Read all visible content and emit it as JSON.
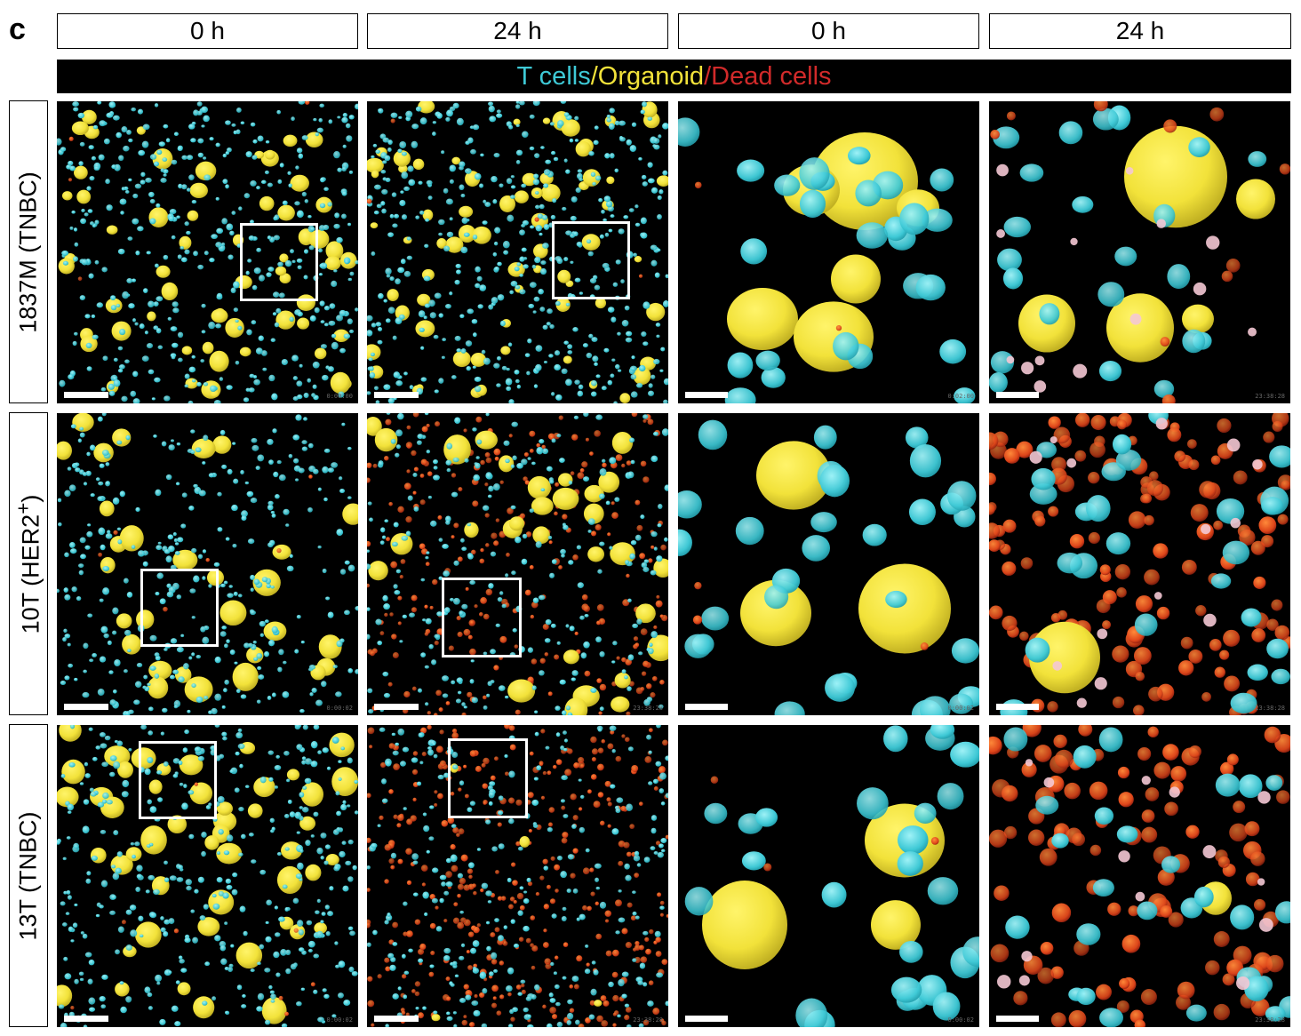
{
  "panel_label": "c",
  "column_headers": [
    "0 h",
    "24 h",
    "0 h",
    "24 h"
  ],
  "legend": {
    "t_cells": "T cells",
    "sep1": "/",
    "organoid": "Organoid",
    "sep2": "/",
    "dead_cells": "Dead cells",
    "colors": {
      "t_cells": "#3ec9d6",
      "organoid": "#f2e23a",
      "dead_cells": "#d12a2a"
    }
  },
  "rows": [
    {
      "label": "1837M (TNBC)",
      "timestamps": [
        "0:00:00",
        "",
        "0:02:00",
        "23:38:28"
      ]
    },
    {
      "label": "10T (HER2+)",
      "timestamps": [
        "0:00:02",
        "23:38:28",
        "0:00:02",
        "23:38:28"
      ]
    },
    {
      "label": "13T (TNBC)",
      "timestamps": [
        "0:00:02",
        "23:38:28",
        "0:00:02",
        "23:38:28"
      ]
    }
  ]
}
